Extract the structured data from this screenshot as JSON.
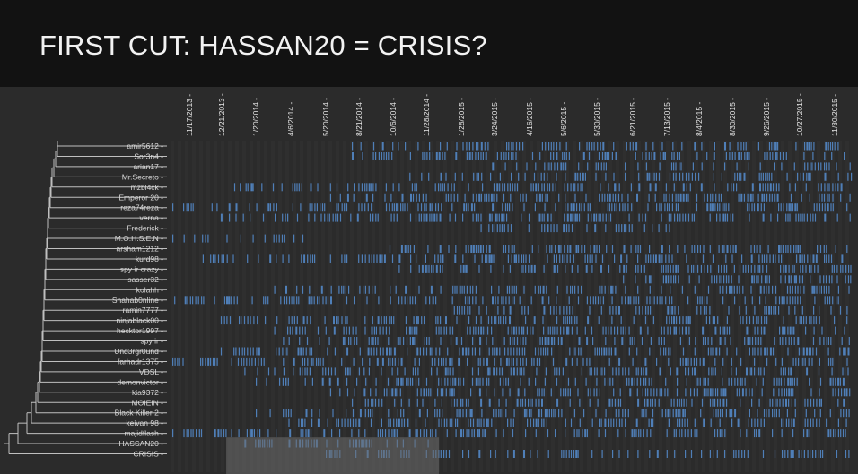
{
  "slide": {
    "title": "FIRST CUT: HASSAN20 = CRISIS?"
  },
  "colors": {
    "background": "#111111",
    "panel": "#2b2b2b",
    "stripe": "#333333",
    "mark": "#4f7fb8",
    "highlight": "#6e6e6e",
    "dendrogram": "#bfbfbf"
  },
  "chart_data": {
    "type": "event-timeline with dendrogram",
    "date_range": [
      "2013-10-20",
      "2015-12-31"
    ],
    "x_ticks": [
      "11/17/2013",
      "12/21/2013",
      "1/20/2014",
      "4/6/2014",
      "5/20/2014",
      "8/21/2014",
      "10/6/2014",
      "11/28/2014",
      "1/28/2015",
      "3/24/2015",
      "4/16/2015",
      "5/6/2015",
      "5/30/2015",
      "6/21/2015",
      "7/13/2015",
      "8/4/2015",
      "8/30/2015",
      "9/26/2015",
      "10/27/2015",
      "11/30/2015"
    ],
    "users": [
      "amir5612",
      "Sor3n4",
      "arian17",
      "Mr.Secreto",
      "mzbl4ck",
      "Emperor 20",
      "reza74reza",
      "verna",
      "Frederick",
      "M.O.H.S.E.N",
      "arsham1212",
      "kurd98",
      "spy ir crazy",
      "sasser32",
      "kolahh",
      "Shahab0nline",
      "ramin7777",
      "ninjablack00",
      "hecktor1997",
      "spy ir",
      "Und3rgr0und",
      "farhadr1375",
      "VDSL",
      "demonvictor",
      "kia9372",
      "MOIEIN",
      "Black Killer 2",
      "keivan 98",
      "majidflash",
      "HASSAN20",
      "CRISIS"
    ],
    "activity_spans": [
      [
        "2014-08-01",
        "2015-12-31"
      ],
      [
        "2014-08-01",
        "2015-12-31"
      ],
      [
        "2015-03-20",
        "2015-12-31"
      ],
      [
        "2014-11-01",
        "2015-12-31"
      ],
      [
        "2014-01-01",
        "2015-12-31"
      ],
      [
        "2014-06-01",
        "2015-12-31"
      ],
      [
        "2013-10-25",
        "2015-12-31"
      ],
      [
        "2013-12-20",
        "2015-12-31"
      ],
      [
        "2015-03-01",
        "2015-07-15"
      ],
      [
        "2013-10-20",
        "2014-04-20"
      ],
      [
        "2014-10-01",
        "2015-12-31"
      ],
      [
        "2013-12-01",
        "2015-12-31"
      ],
      [
        "2014-10-15",
        "2015-12-31"
      ],
      [
        "2015-06-15",
        "2015-12-31"
      ],
      [
        "2014-03-01",
        "2015-12-31"
      ],
      [
        "2013-11-01",
        "2015-12-31"
      ],
      [
        "2015-01-15",
        "2015-12-31"
      ],
      [
        "2013-12-20",
        "2015-12-31"
      ],
      [
        "2014-03-01",
        "2015-12-31"
      ],
      [
        "2014-03-20",
        "2015-12-31"
      ],
      [
        "2013-12-20",
        "2015-12-31"
      ],
      [
        "2013-10-20",
        "2015-12-31"
      ],
      [
        "2014-01-10",
        "2015-12-31"
      ],
      [
        "2014-01-20",
        "2015-12-31"
      ],
      [
        "2014-06-01",
        "2015-12-31"
      ],
      [
        "2014-08-01",
        "2015-12-31"
      ],
      [
        "2014-01-20",
        "2015-12-31"
      ],
      [
        "2014-04-01",
        "2015-12-31"
      ],
      [
        "2013-10-25",
        "2015-12-31"
      ],
      [
        "2014-01-10",
        "2014-12-15"
      ],
      [
        "2014-05-20",
        "2015-12-15"
      ]
    ],
    "highlight_range": [
      "2013-12-25",
      "2014-12-20"
    ]
  }
}
